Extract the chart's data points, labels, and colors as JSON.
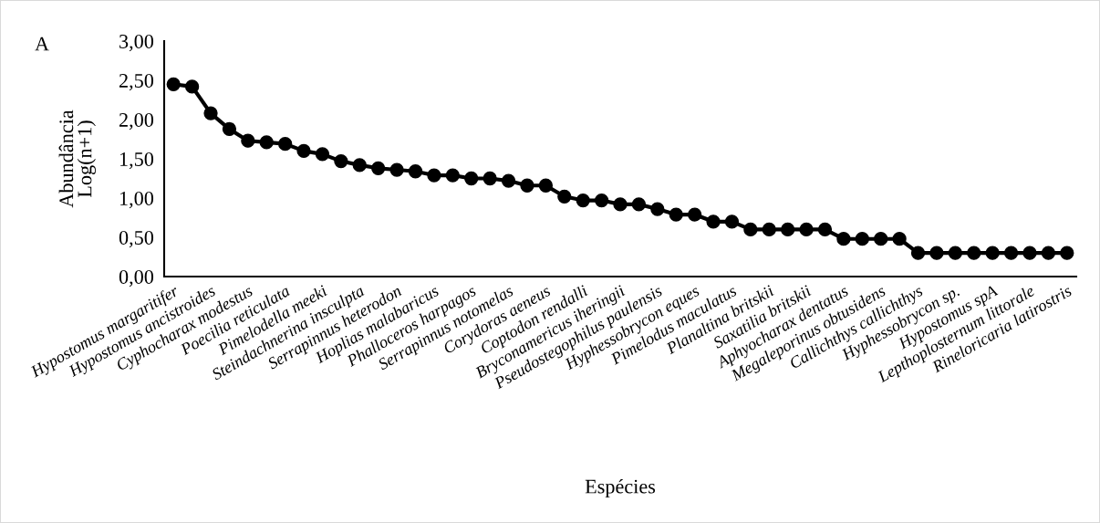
{
  "chart_data": {
    "type": "line",
    "title": "A",
    "xlabel": "Espécies",
    "ylabel": "Abundância\nLog(n+1)",
    "categories": [
      "Hypostomus margaritifer",
      null,
      "Hypostomus ancistroides",
      null,
      "Cyphocharax modestus",
      null,
      "Poecilia reticulata",
      null,
      "Pimelodella meeki",
      null,
      "Steindachnerina insculpta",
      null,
      "Serrapinnus heterodon",
      null,
      "Hoplias malabaricus",
      null,
      "Phalloceros harpagos",
      null,
      "Serrapinnus notomelas",
      null,
      "Corydoras aeneus",
      null,
      "Coptodon rendalli",
      null,
      "Bryconamericus iheringii",
      null,
      "Pseudostegophilus paulensis",
      null,
      "Hyphessobrycon eques",
      null,
      "Pimelodus maculatus",
      null,
      "Planaltina britskii",
      null,
      "Saxatilia britskii",
      null,
      "Aphyocharax dentatus",
      null,
      "Megaleporinus obtusidens",
      null,
      "Callichthys callichthys",
      null,
      "Hyphessobrycon sp.",
      null,
      "Hypostomus spA",
      null,
      "Lepthoplosternum littorale",
      null,
      "Rineloricaria latirostris"
    ],
    "series": [
      {
        "color": "#000000",
        "values": [
          2.45,
          2.42,
          2.08,
          1.88,
          1.73,
          1.71,
          1.69,
          1.6,
          1.56,
          1.47,
          1.42,
          1.38,
          1.36,
          1.34,
          1.29,
          1.29,
          1.25,
          1.25,
          1.22,
          1.16,
          1.16,
          1.02,
          0.97,
          0.97,
          0.92,
          0.92,
          0.86,
          0.79,
          0.79,
          0.7,
          0.7,
          0.6,
          0.6,
          0.6,
          0.6,
          0.6,
          0.48,
          0.48,
          0.48,
          0.48,
          0.3,
          0.3,
          0.3,
          0.3,
          0.3,
          0.3,
          0.3,
          0.3,
          0.3
        ]
      }
    ],
    "ylim": [
      0,
      3
    ],
    "yticks": [
      {
        "value": 0,
        "label": "0,00"
      },
      {
        "value": 0.5,
        "label": "0,50"
      },
      {
        "value": 1,
        "label": "1,00"
      },
      {
        "value": 1.5,
        "label": "1,50"
      },
      {
        "value": 2,
        "label": "2,00"
      },
      {
        "value": 2.5,
        "label": "2,50"
      },
      {
        "value": 3,
        "label": "3,00"
      }
    ],
    "grid": false,
    "marker": "circle",
    "line_style": "solid"
  }
}
